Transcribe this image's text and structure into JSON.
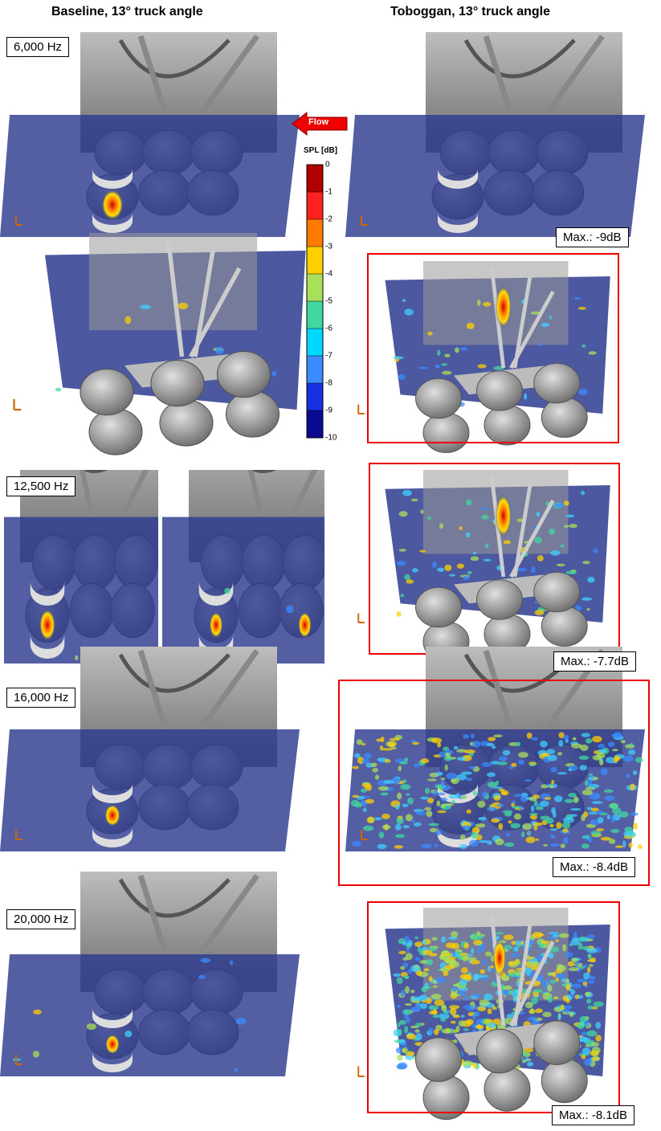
{
  "column_headers": [
    "Baseline, 13° truck angle",
    "Toboggan, 13° truck angle"
  ],
  "flow_label": "Flow",
  "colorbar": {
    "title": "SPL [dB]",
    "ticks": [
      0,
      -1,
      -2,
      -3,
      -4,
      -5,
      -6,
      -7,
      -8,
      -9,
      -10
    ],
    "colors": [
      "#b00000",
      "#ff2020",
      "#ff7a00",
      "#ffd000",
      "#a8e05a",
      "#40d8a0",
      "#00d8ff",
      "#3a8cff",
      "#1830e0",
      "#0a0a90"
    ]
  },
  "rows": [
    {
      "frequency": "6,000 Hz",
      "max_label": "Max.: -9dB"
    },
    {
      "frequency": "12,500 Hz",
      "max_label": "Max.: -7.7dB"
    },
    {
      "frequency": "16,000 Hz",
      "max_label": "Max.: -8.4dB"
    },
    {
      "frequency": "20,000 Hz",
      "max_label": "Max.: -8.1dB"
    }
  ]
}
